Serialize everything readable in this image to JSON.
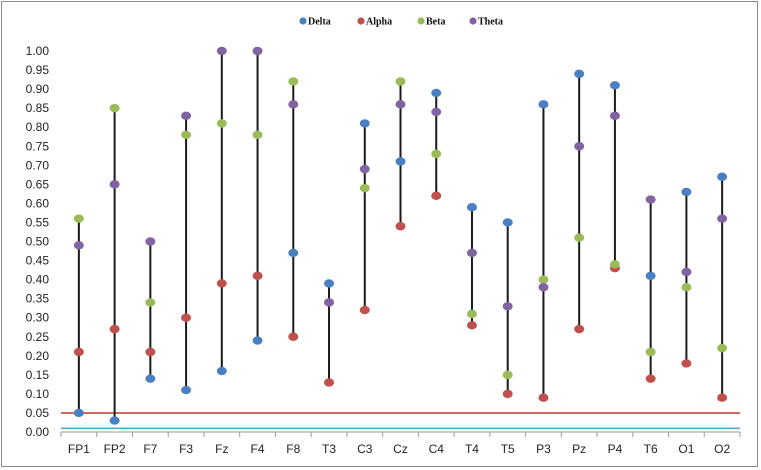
{
  "chart_data": {
    "type": "scatter",
    "subtype": "high-low stem plot",
    "title": "",
    "xlabel": "",
    "ylabel": "",
    "ylim": [
      0,
      1
    ],
    "ytick_step": 0.05,
    "grid": false,
    "legend_position": "top-center",
    "categories": [
      "FP1",
      "FP2",
      "F7",
      "F3",
      "Fz",
      "F4",
      "F8",
      "T3",
      "C3",
      "Cz",
      "C4",
      "T4",
      "T5",
      "P3",
      "Pz",
      "P4",
      "T6",
      "O1",
      "O2"
    ],
    "series": [
      {
        "name": "Delta",
        "color": "#4a7fc1",
        "values": [
          0.05,
          0.03,
          0.14,
          0.11,
          0.16,
          0.24,
          0.47,
          0.39,
          0.81,
          0.71,
          0.89,
          0.59,
          0.55,
          0.86,
          0.94,
          0.91,
          0.41,
          0.63,
          0.67
        ]
      },
      {
        "name": "Alpha",
        "color": "#c0504d",
        "values": [
          0.21,
          0.27,
          0.21,
          0.3,
          0.39,
          0.41,
          0.25,
          0.13,
          0.32,
          0.54,
          0.62,
          0.28,
          0.1,
          0.09,
          0.27,
          0.43,
          0.14,
          0.18,
          0.09
        ]
      },
      {
        "name": "Beta",
        "color": "#9bbb59",
        "values": [
          0.56,
          0.85,
          0.34,
          0.78,
          0.81,
          0.78,
          0.92,
          0.34,
          0.64,
          0.92,
          0.73,
          0.31,
          0.15,
          0.4,
          0.51,
          0.44,
          0.21,
          0.38,
          0.22
        ]
      },
      {
        "name": "Theta",
        "color": "#8064a2",
        "values": [
          0.49,
          0.65,
          0.5,
          0.83,
          1.0,
          1.0,
          0.86,
          0.34,
          0.69,
          0.86,
          0.84,
          0.47,
          0.33,
          0.38,
          0.75,
          0.83,
          0.61,
          0.42,
          0.56
        ]
      }
    ],
    "reference_lines": [
      {
        "y": 0.05,
        "color": "#c0392b"
      },
      {
        "y": 0.01,
        "color": "#4bacc6"
      }
    ]
  }
}
